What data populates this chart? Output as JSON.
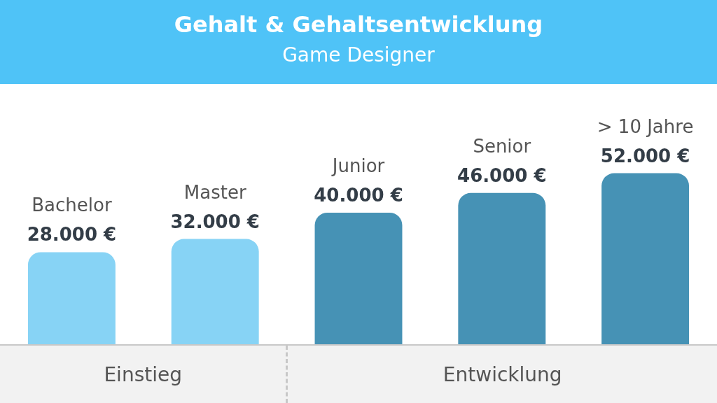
{
  "chart_data": {
    "type": "bar",
    "title": "Gehalt & Gehaltsentwicklung",
    "subtitle": "Game Designer",
    "categories": [
      "Bachelor",
      "Master",
      "Junior",
      "Senior",
      "> 10 Jahre"
    ],
    "values": [
      28000,
      32000,
      40000,
      46000,
      52000
    ],
    "colors": [
      "#87d3f5",
      "#87d3f5",
      "#4692b5",
      "#4692b5",
      "#4692b5"
    ],
    "value_labels": [
      "28.000 €",
      "32.000 €",
      "40.000 €",
      "46.000 €",
      "52.000 €"
    ],
    "annotations": [
      "Einstieg",
      "Entwicklung"
    ],
    "legend": false
  }
}
